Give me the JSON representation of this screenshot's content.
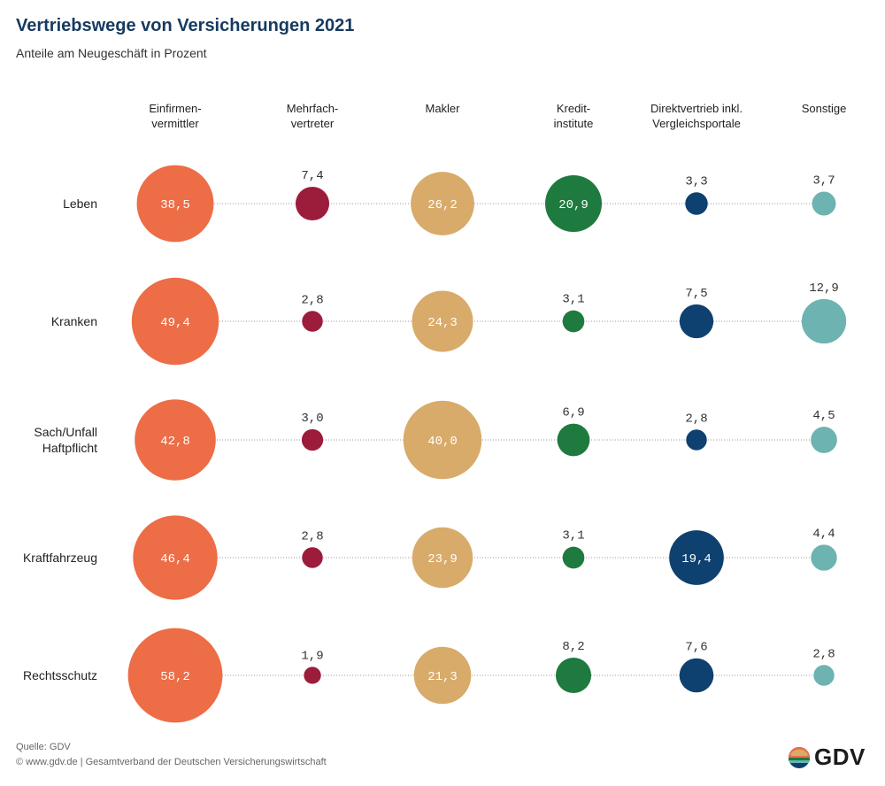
{
  "header": {
    "title": "Vertriebswege von Versicherungen 2021",
    "subtitle": "Anteile am Neugeschäft in Prozent"
  },
  "footer": {
    "source": "Quelle: GDV",
    "copyright": "© www.gdv.de | Gesamtverband der Deutschen Versicherungswirtschaft"
  },
  "logo": {
    "text": "GDV"
  },
  "chart_data": {
    "type": "bubble-matrix",
    "title": "Vertriebswege von Versicherungen 2021",
    "subtitle": "Anteile am Neugeschäft in Prozent",
    "columns": [
      {
        "label_lines": [
          "Einfirmen-",
          "vermittler"
        ],
        "color": "#ec6d46"
      },
      {
        "label_lines": [
          "Mehrfach-",
          "vertreter"
        ],
        "color": "#9c1c3b"
      },
      {
        "label_lines": [
          "Makler"
        ],
        "color": "#d8ab6a"
      },
      {
        "label_lines": [
          "Kredit-",
          "institute"
        ],
        "color": "#1f7a3f"
      },
      {
        "label_lines": [
          "Direktvertrieb inkl.",
          "Vergleichsportale"
        ],
        "color": "#0f4170"
      },
      {
        "label_lines": [
          "Sonstige"
        ],
        "color": "#6cb3b1"
      }
    ],
    "rows": [
      {
        "label_lines": [
          "Leben"
        ],
        "values": [
          "38,5",
          "7,4",
          "26,2",
          "20,9",
          "3,3",
          "3,7"
        ]
      },
      {
        "label_lines": [
          "Kranken"
        ],
        "values": [
          "49,4",
          "2,8",
          "24,3",
          "3,1",
          "7,5",
          "12,9"
        ]
      },
      {
        "label_lines": [
          "Sach/Unfall",
          "Haftpflicht"
        ],
        "values": [
          "42,8",
          "3,0",
          "40,0",
          "6,9",
          "2,8",
          "4,5"
        ]
      },
      {
        "label_lines": [
          "Kraftfahrzeug"
        ],
        "values": [
          "46,4",
          "2,8",
          "23,9",
          "3,1",
          "19,4",
          "4,4"
        ]
      },
      {
        "label_lines": [
          "Rechtsschutz"
        ],
        "values": [
          "58,2",
          "1,9",
          "21,3",
          "8,2",
          "7,6",
          "2,8"
        ]
      }
    ]
  }
}
